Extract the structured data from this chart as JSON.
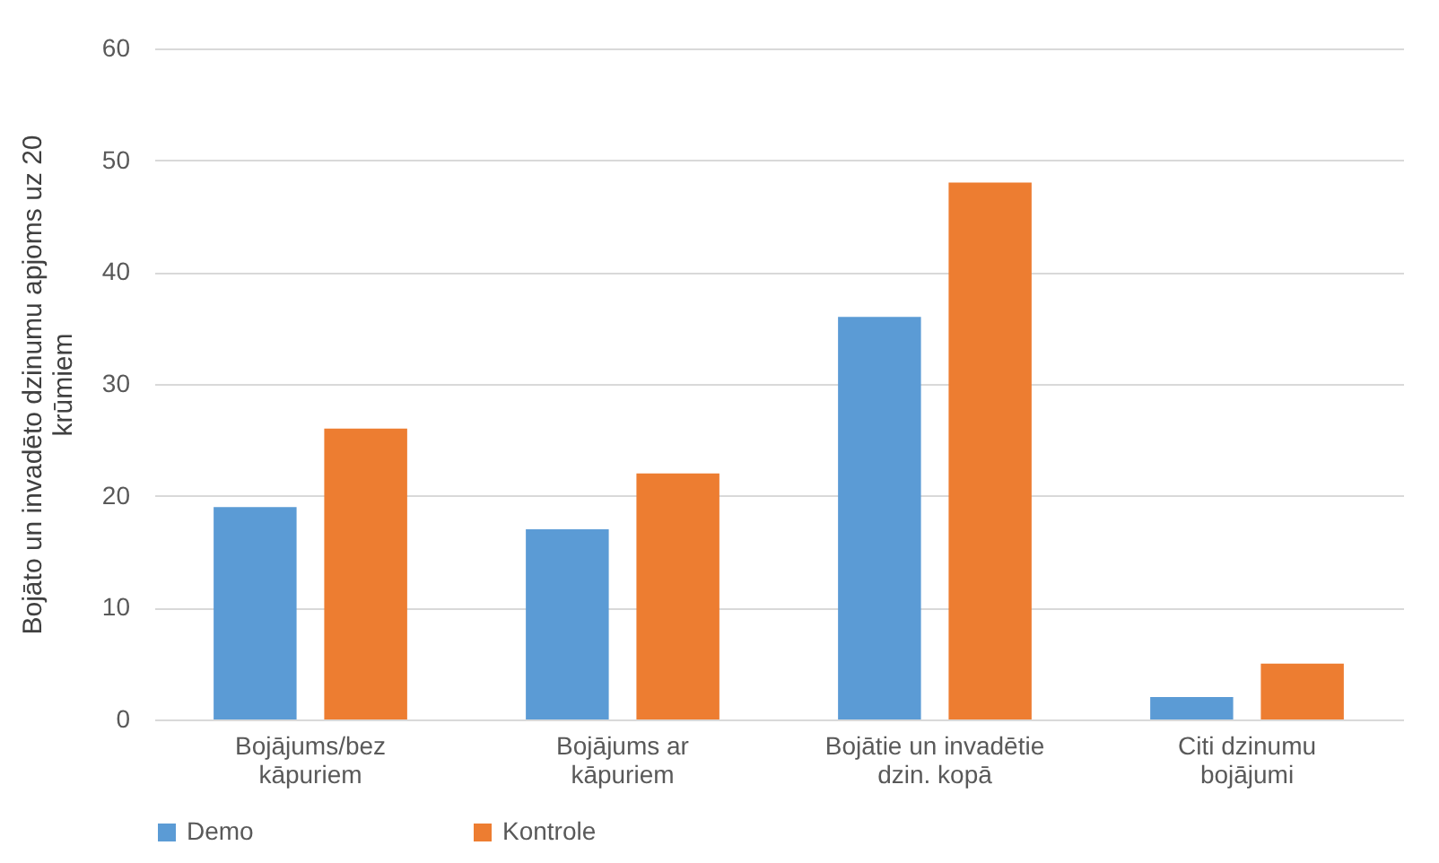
{
  "chart_data": {
    "type": "bar",
    "ylabel": "Bojāto un invadēto dzinumu apjoms uz 20 krūmiem",
    "categories": [
      "Bojājums/bez kāpuriem",
      "Bojājums ar kāpuriem",
      "Bojātie un invadētie dzin. kopā",
      "Citi dzinumu bojājumi"
    ],
    "series": [
      {
        "name": "Demo",
        "color": "#5b9bd5",
        "values": [
          19,
          17,
          36,
          2
        ]
      },
      {
        "name": "Kontrole",
        "color": "#ed7d31",
        "values": [
          26,
          22,
          48,
          5
        ]
      }
    ],
    "ylim": [
      0,
      60
    ],
    "yticks": [
      0,
      10,
      20,
      30,
      40,
      50,
      60
    ],
    "grid": "y",
    "legend": "bottom"
  }
}
